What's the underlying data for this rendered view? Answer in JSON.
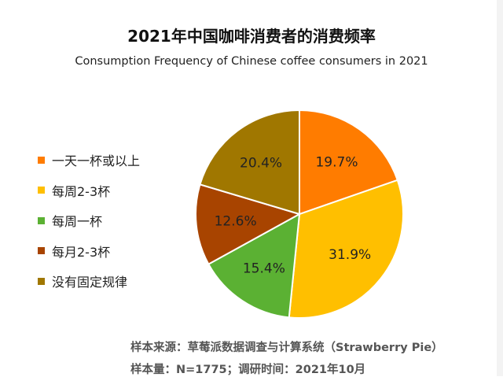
{
  "chart_data": {
    "type": "pie",
    "title": "2021年中国咖啡消费者的消费频率",
    "subtitle": "Consumption Frequency of Chinese coffee consumers in 2021",
    "legend_position": "left",
    "slices": [
      {
        "label": "一天一杯或以上",
        "value": 19.7,
        "display": "19.7%",
        "color": "#FF7C00"
      },
      {
        "label": "每周2-3杯",
        "value": 31.9,
        "display": "31.9%",
        "color": "#FFBF00"
      },
      {
        "label": "每周一杯",
        "value": 15.4,
        "display": "15.4%",
        "color": "#5BB133"
      },
      {
        "label": "每月2-3杯",
        "value": 12.6,
        "display": "12.6%",
        "color": "#A84400"
      },
      {
        "label": "没有固定规律",
        "value": 20.4,
        "display": "20.4%",
        "color": "#A07700"
      }
    ]
  },
  "footer": {
    "source": "样本来源：草莓派数据调查与计算系统（Strawberry Pie）",
    "sample": "样本量：N=1775；调研时间：2021年10月"
  }
}
